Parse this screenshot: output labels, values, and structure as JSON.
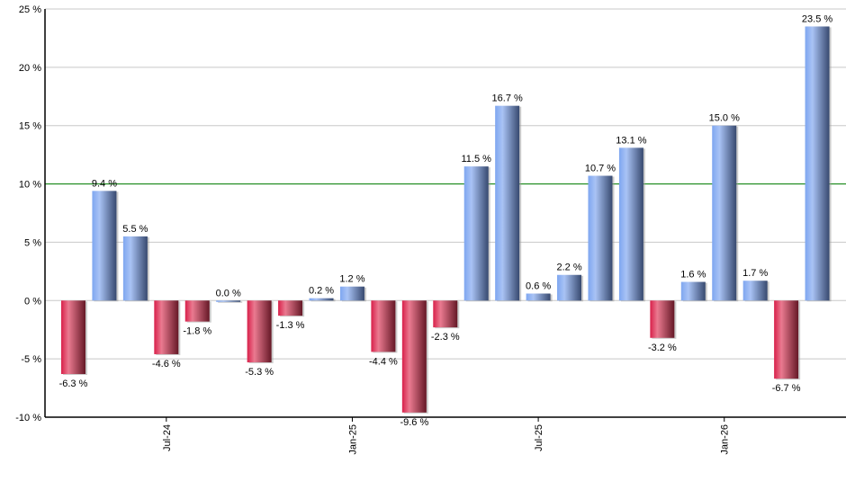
{
  "chart_data": {
    "type": "bar",
    "title": "",
    "xlabel": "",
    "ylabel": "",
    "ylim": [
      -10,
      25
    ],
    "yticks": [
      -10,
      -5,
      0,
      5,
      10,
      15,
      20,
      25
    ],
    "ytick_labels": [
      "-10 %",
      "-5 %",
      "0 %",
      "5 %",
      "10 %",
      "15 %",
      "20 %",
      "25 %"
    ],
    "grid": true,
    "reference_line": 10,
    "categories": [
      "Apr-24",
      "May-24",
      "Jun-24",
      "Jul-24",
      "Aug-24",
      "Sep-24",
      "Oct-24",
      "Nov-24",
      "Dec-24",
      "Jan-25",
      "Feb-25",
      "Mar-25",
      "Apr-25",
      "May-25",
      "Jun-25",
      "Jul-25",
      "Aug-25",
      "Sep-25",
      "Oct-25",
      "Nov-25",
      "Dec-25",
      "Jan-26",
      "Feb-26",
      "Mar-26",
      "Apr-26"
    ],
    "xtick_labels": [
      {
        "index": 3,
        "label": "Jul-24"
      },
      {
        "index": 9,
        "label": "Jan-25"
      },
      {
        "index": 15,
        "label": "Jul-25"
      },
      {
        "index": 21,
        "label": "Jan-26"
      }
    ],
    "values": [
      -6.3,
      9.4,
      5.5,
      -4.6,
      -1.8,
      0.0,
      -5.3,
      -1.3,
      0.2,
      1.2,
      -4.4,
      -9.6,
      -2.3,
      11.5,
      16.7,
      0.6,
      2.2,
      10.7,
      13.1,
      -3.2,
      1.6,
      15.0,
      1.7,
      -6.7,
      23.5
    ],
    "data_labels": [
      "-6.3 %",
      "9.4 %",
      "5.5 %",
      "-4.6 %",
      "-1.8 %",
      "0.0 %",
      "-5.3 %",
      "-1.3 %",
      "0.2 %",
      "1.2 %",
      "-4.4 %",
      "-9.6 %",
      "-2.3 %",
      "11.5 %",
      "16.7 %",
      "0.6 %",
      "2.2 %",
      "10.7 %",
      "13.1 %",
      "-3.2 %",
      "1.6 %",
      "15.0 %",
      "1.7 %",
      "-6.7 %",
      "23.5 %"
    ],
    "colors": {
      "positive": "#6f93d8",
      "negative": "#c8284a",
      "reference_line": "#008000",
      "grid": "#c8c8c8"
    }
  }
}
